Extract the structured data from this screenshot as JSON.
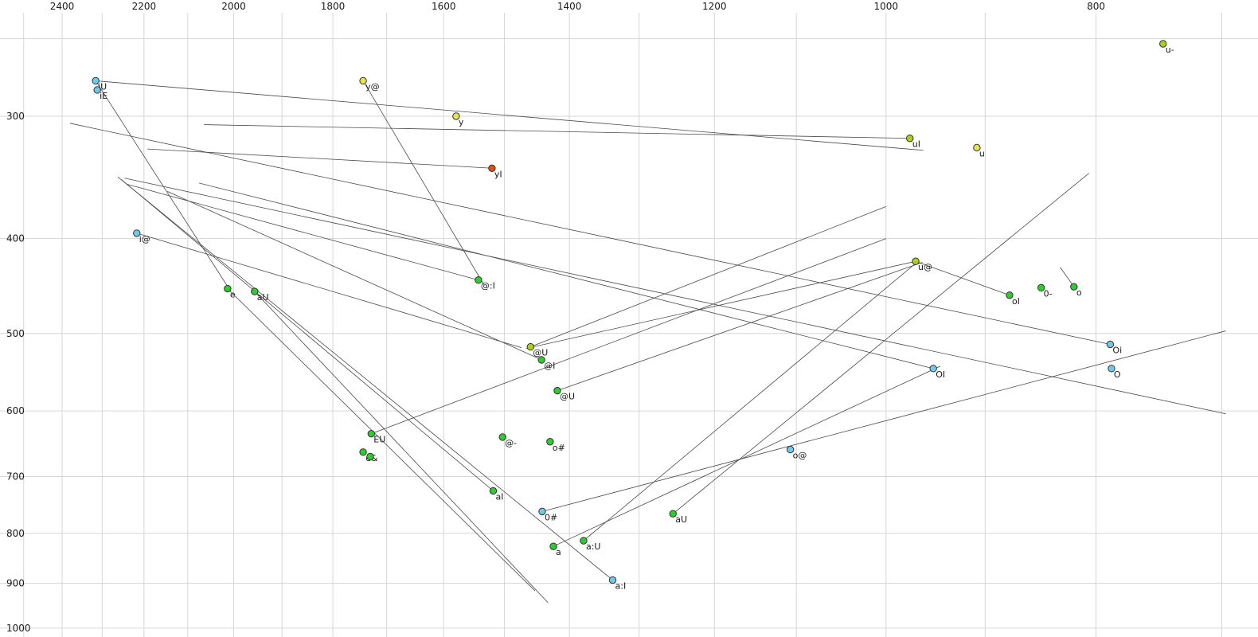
{
  "chart_data": {
    "type": "scatter",
    "title": "",
    "xlabel": "",
    "ylabel": "",
    "x_axis": {
      "position": "top",
      "scale": "log-reversed",
      "ticks": [
        2400,
        2200,
        2000,
        1800,
        1600,
        1400,
        1200,
        1000,
        800
      ],
      "range": [
        2565,
        660
      ]
    },
    "y_axis": {
      "position": "left",
      "scale": "log",
      "ticks": [
        300,
        400,
        500,
        600,
        700,
        800,
        900,
        1000
      ],
      "range": [
        245,
        1010
      ]
    },
    "grid": {
      "show": true,
      "color": "#d6d6d6",
      "x_lines": [
        2500,
        2400,
        2300,
        2200,
        2100,
        2000,
        1900,
        1800,
        1700,
        1600,
        1500,
        1400,
        1300,
        1200,
        1100,
        1000,
        900,
        800,
        700
      ],
      "y_lines": [
        250,
        300,
        400,
        500,
        600,
        700,
        800,
        900,
        1000
      ]
    },
    "colors": {
      "green": "#2ecc2e",
      "yellowgreen": "#a9d411",
      "yellow": "#e6e353",
      "cyan": "#70c9ea",
      "red": "#d94f1e",
      "dot_stroke": "#333333",
      "line": "#4a4a4a",
      "text": "#1a1a1a"
    },
    "points": [
      {
        "label": "u-",
        "f2": 745,
        "f1": 253,
        "color": "yellowgreen"
      },
      {
        "label": "iU",
        "f2": 2316,
        "f1": 276,
        "color": "cyan"
      },
      {
        "label": "iE",
        "f2": 2312,
        "f1": 282,
        "color": "cyan"
      },
      {
        "label": "y@",
        "f2": 1743,
        "f1": 276,
        "color": "yellow"
      },
      {
        "label": "y",
        "f2": 1579,
        "f1": 300,
        "color": "yellow"
      },
      {
        "label": "uI",
        "f2": 975,
        "f1": 316,
        "color": "yellowgreen"
      },
      {
        "label": "u",
        "f2": 908,
        "f1": 323,
        "color": "yellow"
      },
      {
        "label": "yI",
        "f2": 1520,
        "f1": 339,
        "color": "red"
      },
      {
        "label": "i@",
        "f2": 2217,
        "f1": 395,
        "color": "cyan"
      },
      {
        "label": "u@",
        "f2": 969,
        "f1": 422,
        "color": "yellowgreen"
      },
      {
        "label": "0-",
        "f2": 848,
        "f1": 449,
        "color": "green"
      },
      {
        "label": "o",
        "f2": 819,
        "f1": 448,
        "color": "green"
      },
      {
        "label": "oI",
        "f2": 877,
        "f1": 457,
        "color": "green"
      },
      {
        "label": "@:I",
        "f2": 1542,
        "f1": 441,
        "color": "green"
      },
      {
        "label": "e",
        "f2": 2013,
        "f1": 450,
        "color": "green"
      },
      {
        "label": "aU",
        "f2": 1956,
        "f1": 453,
        "color": "green"
      },
      {
        "label": "@U",
        "f2": 1459,
        "f1": 516,
        "color": "yellowgreen"
      },
      {
        "label": "@I",
        "f2": 1442,
        "f1": 532,
        "color": "green"
      },
      {
        "label": "Oi",
        "f2": 788,
        "f1": 513,
        "color": "cyan"
      },
      {
        "label": "O",
        "f2": 787,
        "f1": 543,
        "color": "cyan"
      },
      {
        "label": "OI",
        "f2": 951,
        "f1": 543,
        "color": "cyan"
      },
      {
        "label": "@U",
        "f2": 1418,
        "f1": 572,
        "color": "green"
      },
      {
        "label": "EU",
        "f2": 1728,
        "f1": 633,
        "color": "green"
      },
      {
        "label": "@-",
        "f2": 1503,
        "f1": 638,
        "color": "green"
      },
      {
        "label": "o#",
        "f2": 1429,
        "f1": 645,
        "color": "green"
      },
      {
        "label": "e&",
        "f2": 1743,
        "f1": 661,
        "color": "green"
      },
      {
        "label": "",
        "f2": 1730,
        "f1": 668,
        "color": "green"
      },
      {
        "label": "o@",
        "f2": 1107,
        "f1": 657,
        "color": "cyan"
      },
      {
        "label": "aI",
        "f2": 1518,
        "f1": 724,
        "color": "green"
      },
      {
        "label": "0#",
        "f2": 1441,
        "f1": 760,
        "color": "cyan"
      },
      {
        "label": "aU",
        "f2": 1254,
        "f1": 764,
        "color": "green"
      },
      {
        "label": "a",
        "f2": 1424,
        "f1": 825,
        "color": "green"
      },
      {
        "label": "a:U",
        "f2": 1379,
        "f1": 814,
        "color": "green"
      },
      {
        "label": "a:I",
        "f2": 1337,
        "f1": 893,
        "color": "cyan"
      }
    ],
    "segments": [
      [
        [
          2316,
          276
        ],
        [
          961,
          325
        ]
      ],
      [
        [
          2064,
          306
        ],
        [
          975,
          316
        ]
      ],
      [
        [
          2192,
          324
        ],
        [
          1520,
          339
        ]
      ],
      [
        [
          1743,
          276
        ],
        [
          1533,
          446
        ]
      ],
      [
        [
          2316,
          276
        ],
        [
          2010,
          450
        ]
      ],
      [
        [
          2217,
          395
        ],
        [
          1473,
          517
        ]
      ],
      [
        [
          969,
          422
        ],
        [
          877,
          457
        ]
      ],
      [
        [
          831,
          428
        ],
        [
          819,
          448
        ]
      ],
      [
        [
          1542,
          441
        ],
        [
          2240,
          352
        ]
      ],
      [
        [
          1518,
          724
        ],
        [
          2254,
          348
        ]
      ],
      [
        [
          1337,
          893
        ],
        [
          2262,
          346
        ]
      ],
      [
        [
          788,
          513
        ],
        [
          2380,
          305
        ]
      ],
      [
        [
          951,
          543
        ],
        [
          2075,
          351
        ]
      ],
      [
        [
          1254,
          764
        ],
        [
          806,
          343
        ]
      ],
      [
        [
          1379,
          814
        ],
        [
          969,
          424
        ]
      ],
      [
        [
          1424,
          825
        ],
        [
          944,
          540
        ]
      ],
      [
        [
          1956,
          453
        ],
        [
          1432,
          942
        ]
      ],
      [
        [
          2013,
          450
        ],
        [
          1452,
          916
        ]
      ],
      [
        [
          2246,
          347
        ],
        [
          697,
          604
        ]
      ],
      [
        [
          969,
          422
        ],
        [
          1466,
          518
        ]
      ],
      [
        [
          1441,
          760
        ],
        [
          697,
          497
        ]
      ],
      [
        [
          1728,
          633
        ],
        [
          1000,
          400
        ]
      ],
      [
        [
          1459,
          516
        ],
        [
          1000,
          371
        ]
      ],
      [
        [
          1418,
          572
        ],
        [
          962,
          423
        ]
      ],
      [
        [
          1442,
          532
        ],
        [
          2146,
          358
        ]
      ]
    ]
  }
}
